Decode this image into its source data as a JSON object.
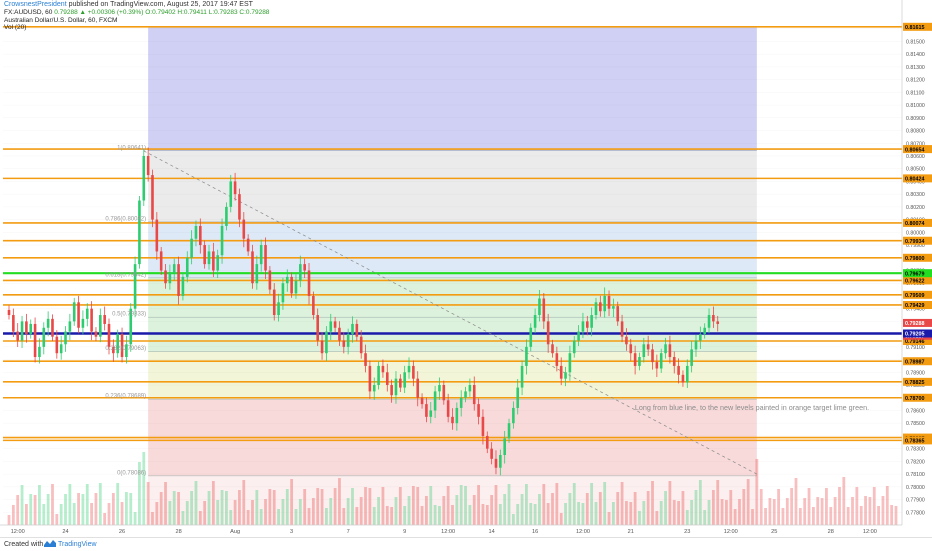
{
  "header": {
    "author": "CrowsnestPresident",
    "text": " published on TradingView.com, August 25, 2017 19:47 EST"
  },
  "legend": {
    "quote_prefix": "FX:AUDUSD, 60",
    "quote_values": "0.79288 ▲ +0.00306 (+0.39%) O:0.79402 H:0.79411 L:0.79283 C:0.79288",
    "description": "Australian Dollar/U.S. Dollar, 60, FXCM",
    "volume": "Vol (20)"
  },
  "annotation": "Long from blue line, to the new levels painted in orange target lime green.",
  "footer": {
    "created_with": "Created with",
    "brand": "TradingView"
  },
  "colors": {
    "orange_line": "#f39c12",
    "lime_line": "#22dd22",
    "blue_line": "#1a1aaa",
    "candle_up": "#2ecc71",
    "candle_down": "#e84848",
    "zone_purple": "#d0d0f4",
    "zone_gray": "#ebebeb",
    "zone_lightblue": "#dde9f6",
    "zone_green": "#dcf2dc",
    "zone_yellow": "#f2f5d8",
    "zone_pink": "#f8dada",
    "zone_lightpink": "#fcefef"
  },
  "chart_data": {
    "type": "candlestick",
    "symbol": "FX:AUDUSD",
    "timeframe": "60",
    "ylim": [
      0.777,
      0.817
    ],
    "y_ticks": [
      "0.81600",
      "0.81500",
      "0.81400",
      "0.81300",
      "0.81200",
      "0.81100",
      "0.81000",
      "0.80900",
      "0.80800",
      "0.80700",
      "0.80600",
      "0.80500",
      "0.80400",
      "0.80300",
      "0.80200",
      "0.80100",
      "0.80000",
      "0.79900",
      "0.79800",
      "0.79700",
      "0.79600",
      "0.79500",
      "0.79400",
      "0.79300",
      "0.79200",
      "0.79100",
      "0.79000",
      "0.78900",
      "0.78800",
      "0.78700",
      "0.78600",
      "0.78500",
      "0.78400",
      "0.78300",
      "0.78200",
      "0.78100",
      "0.78000",
      "0.77900",
      "0.77800"
    ],
    "x_ticks": [
      {
        "label": "12:00",
        "i": 2
      },
      {
        "label": "24",
        "i": 13
      },
      {
        "label": "26",
        "i": 26
      },
      {
        "label": "28",
        "i": 39
      },
      {
        "label": "Aug",
        "i": 52
      },
      {
        "label": "3",
        "i": 65
      },
      {
        "label": "7",
        "i": 78
      },
      {
        "label": "9",
        "i": 91
      },
      {
        "label": "12:00",
        "i": 101
      },
      {
        "label": "14",
        "i": 111
      },
      {
        "label": "16",
        "i": 121
      },
      {
        "label": "12:00",
        "i": 132
      },
      {
        "label": "21",
        "i": 143
      },
      {
        "label": "23",
        "i": 156
      },
      {
        "label": "12:00",
        "i": 166
      },
      {
        "label": "25",
        "i": 176
      },
      {
        "label": "28",
        "i": 189
      },
      {
        "label": "12:00",
        "i": 198
      }
    ],
    "x_count": 205,
    "orange_levels": [
      "0.81615",
      "0.80654",
      "0.80424",
      "0.80074",
      "0.79934",
      "0.79800",
      "0.79622",
      "0.79509",
      "0.79429",
      "0.79146",
      "0.78987",
      "0.78825",
      "0.78700",
      "0.78387",
      "0.78365"
    ],
    "lime_level": "0.79679",
    "blue_level": "0.79205",
    "current_price": "0.79288",
    "extra_price_labels": [
      "0.79187"
    ],
    "fib_levels": [
      {
        "label": "1(0.80641)",
        "value": 0.80641
      },
      {
        "label": "0.786(0.80082)",
        "value": 0.80082
      },
      {
        "label": "0.618(0.79642)",
        "value": 0.79642
      },
      {
        "label": "0.5(0.79333)",
        "value": 0.79333
      },
      {
        "label": "0.382(0.79063)",
        "value": 0.79063
      },
      {
        "label": "0.236(0.78689)",
        "value": 0.78689
      },
      {
        "label": "0(0.78086)",
        "value": 0.78086
      }
    ],
    "candles_close": [
      0.7935,
      0.7922,
      0.7915,
      0.793,
      0.792,
      0.7928,
      0.7902,
      0.791,
      0.7925,
      0.7932,
      0.7918,
      0.7905,
      0.7912,
      0.7922,
      0.793,
      0.7945,
      0.7925,
      0.7932,
      0.794,
      0.7922,
      0.7918,
      0.7935,
      0.7928,
      0.791,
      0.7905,
      0.792,
      0.7902,
      0.7912,
      0.794,
      0.7975,
      0.8025,
      0.806,
      0.8045,
      0.801,
      0.7985,
      0.797,
      0.796,
      0.7968,
      0.7975,
      0.795,
      0.7965,
      0.798,
      0.7995,
      0.8005,
      0.799,
      0.7975,
      0.7985,
      0.797,
      0.7982,
      0.8005,
      0.802,
      0.804,
      0.803,
      0.801,
      0.7995,
      0.7985,
      0.796,
      0.7975,
      0.799,
      0.797,
      0.7955,
      0.7935,
      0.7945,
      0.796,
      0.7965,
      0.7952,
      0.7962,
      0.7975,
      0.797,
      0.795,
      0.7935,
      0.7915,
      0.7905,
      0.7922,
      0.793,
      0.7925,
      0.7915,
      0.791,
      0.792,
      0.7928,
      0.7918,
      0.7905,
      0.7895,
      0.7875,
      0.788,
      0.7895,
      0.789,
      0.788,
      0.7872,
      0.7885,
      0.7878,
      0.789,
      0.7895,
      0.7885,
      0.787,
      0.7865,
      0.7855,
      0.786,
      0.7875,
      0.788,
      0.7868,
      0.7855,
      0.785,
      0.7862,
      0.787,
      0.7875,
      0.788,
      0.7865,
      0.7855,
      0.784,
      0.783,
      0.7822,
      0.7815,
      0.7825,
      0.7838,
      0.785,
      0.7862,
      0.7878,
      0.7895,
      0.791,
      0.7925,
      0.7935,
      0.7948,
      0.793,
      0.7912,
      0.7905,
      0.7895,
      0.7885,
      0.789,
      0.7905,
      0.7915,
      0.7922,
      0.793,
      0.7925,
      0.7935,
      0.7945,
      0.7938,
      0.795,
      0.794,
      0.7942,
      0.793,
      0.7918,
      0.7912,
      0.7905,
      0.7895,
      0.7902,
      0.7912,
      0.7908,
      0.7898,
      0.7893,
      0.7905,
      0.7912,
      0.7902,
      0.7895,
      0.7888,
      0.7882,
      0.7895,
      0.7908,
      0.7915,
      0.792,
      0.7925,
      0.7935,
      0.793,
      0.7928
    ],
    "annotation_text": "Long from blue line, to the new levels painted in orange target lime green."
  }
}
